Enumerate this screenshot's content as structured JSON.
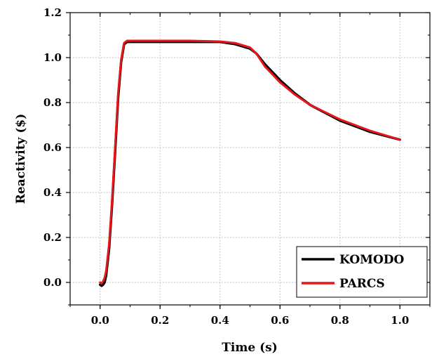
{
  "chart_data": {
    "type": "line",
    "xlabel": "Time (s)",
    "ylabel": "Reactivity ($)",
    "xlim": [
      -0.1,
      1.1
    ],
    "ylim": [
      -0.1,
      1.2
    ],
    "xticks": [
      0.0,
      0.2,
      0.4,
      0.6,
      0.8,
      1.0
    ],
    "xtick_labels": [
      "0.0",
      "0.2",
      "0.4",
      "0.6",
      "0.8",
      "1.0"
    ],
    "yticks": [
      0.0,
      0.2,
      0.4,
      0.6,
      0.8,
      1.0,
      1.2
    ],
    "ytick_labels": [
      "0.0",
      "0.2",
      "0.4",
      "0.6",
      "0.8",
      "1.0",
      "1.2"
    ],
    "grid": true,
    "legend_position": "bottom-right",
    "series": [
      {
        "name": "KOMODO",
        "color": "#000000",
        "x": [
          0.0,
          0.005,
          0.01,
          0.015,
          0.02,
          0.03,
          0.04,
          0.05,
          0.06,
          0.07,
          0.08,
          0.09,
          0.1,
          0.15,
          0.2,
          0.3,
          0.4,
          0.45,
          0.5,
          0.52,
          0.55,
          0.6,
          0.65,
          0.7,
          0.8,
          0.9,
          1.0
        ],
        "y": [
          -0.01,
          -0.015,
          -0.01,
          0.0,
          0.03,
          0.15,
          0.35,
          0.58,
          0.82,
          0.98,
          1.06,
          1.07,
          1.07,
          1.07,
          1.07,
          1.07,
          1.07,
          1.06,
          1.04,
          1.02,
          0.97,
          0.9,
          0.84,
          0.79,
          0.72,
          0.67,
          0.635
        ]
      },
      {
        "name": "PARCS",
        "color": "#e8161b",
        "x": [
          0.0,
          0.005,
          0.01,
          0.015,
          0.02,
          0.03,
          0.04,
          0.05,
          0.06,
          0.07,
          0.08,
          0.09,
          0.1,
          0.15,
          0.2,
          0.3,
          0.4,
          0.45,
          0.5,
          0.52,
          0.55,
          0.6,
          0.65,
          0.7,
          0.8,
          0.9,
          1.0
        ],
        "y": [
          0.0,
          -0.005,
          0.005,
          0.02,
          0.05,
          0.17,
          0.37,
          0.6,
          0.84,
          0.99,
          1.065,
          1.075,
          1.075,
          1.075,
          1.075,
          1.075,
          1.072,
          1.065,
          1.045,
          1.02,
          0.96,
          0.89,
          0.835,
          0.79,
          0.725,
          0.675,
          0.635
        ]
      }
    ]
  }
}
